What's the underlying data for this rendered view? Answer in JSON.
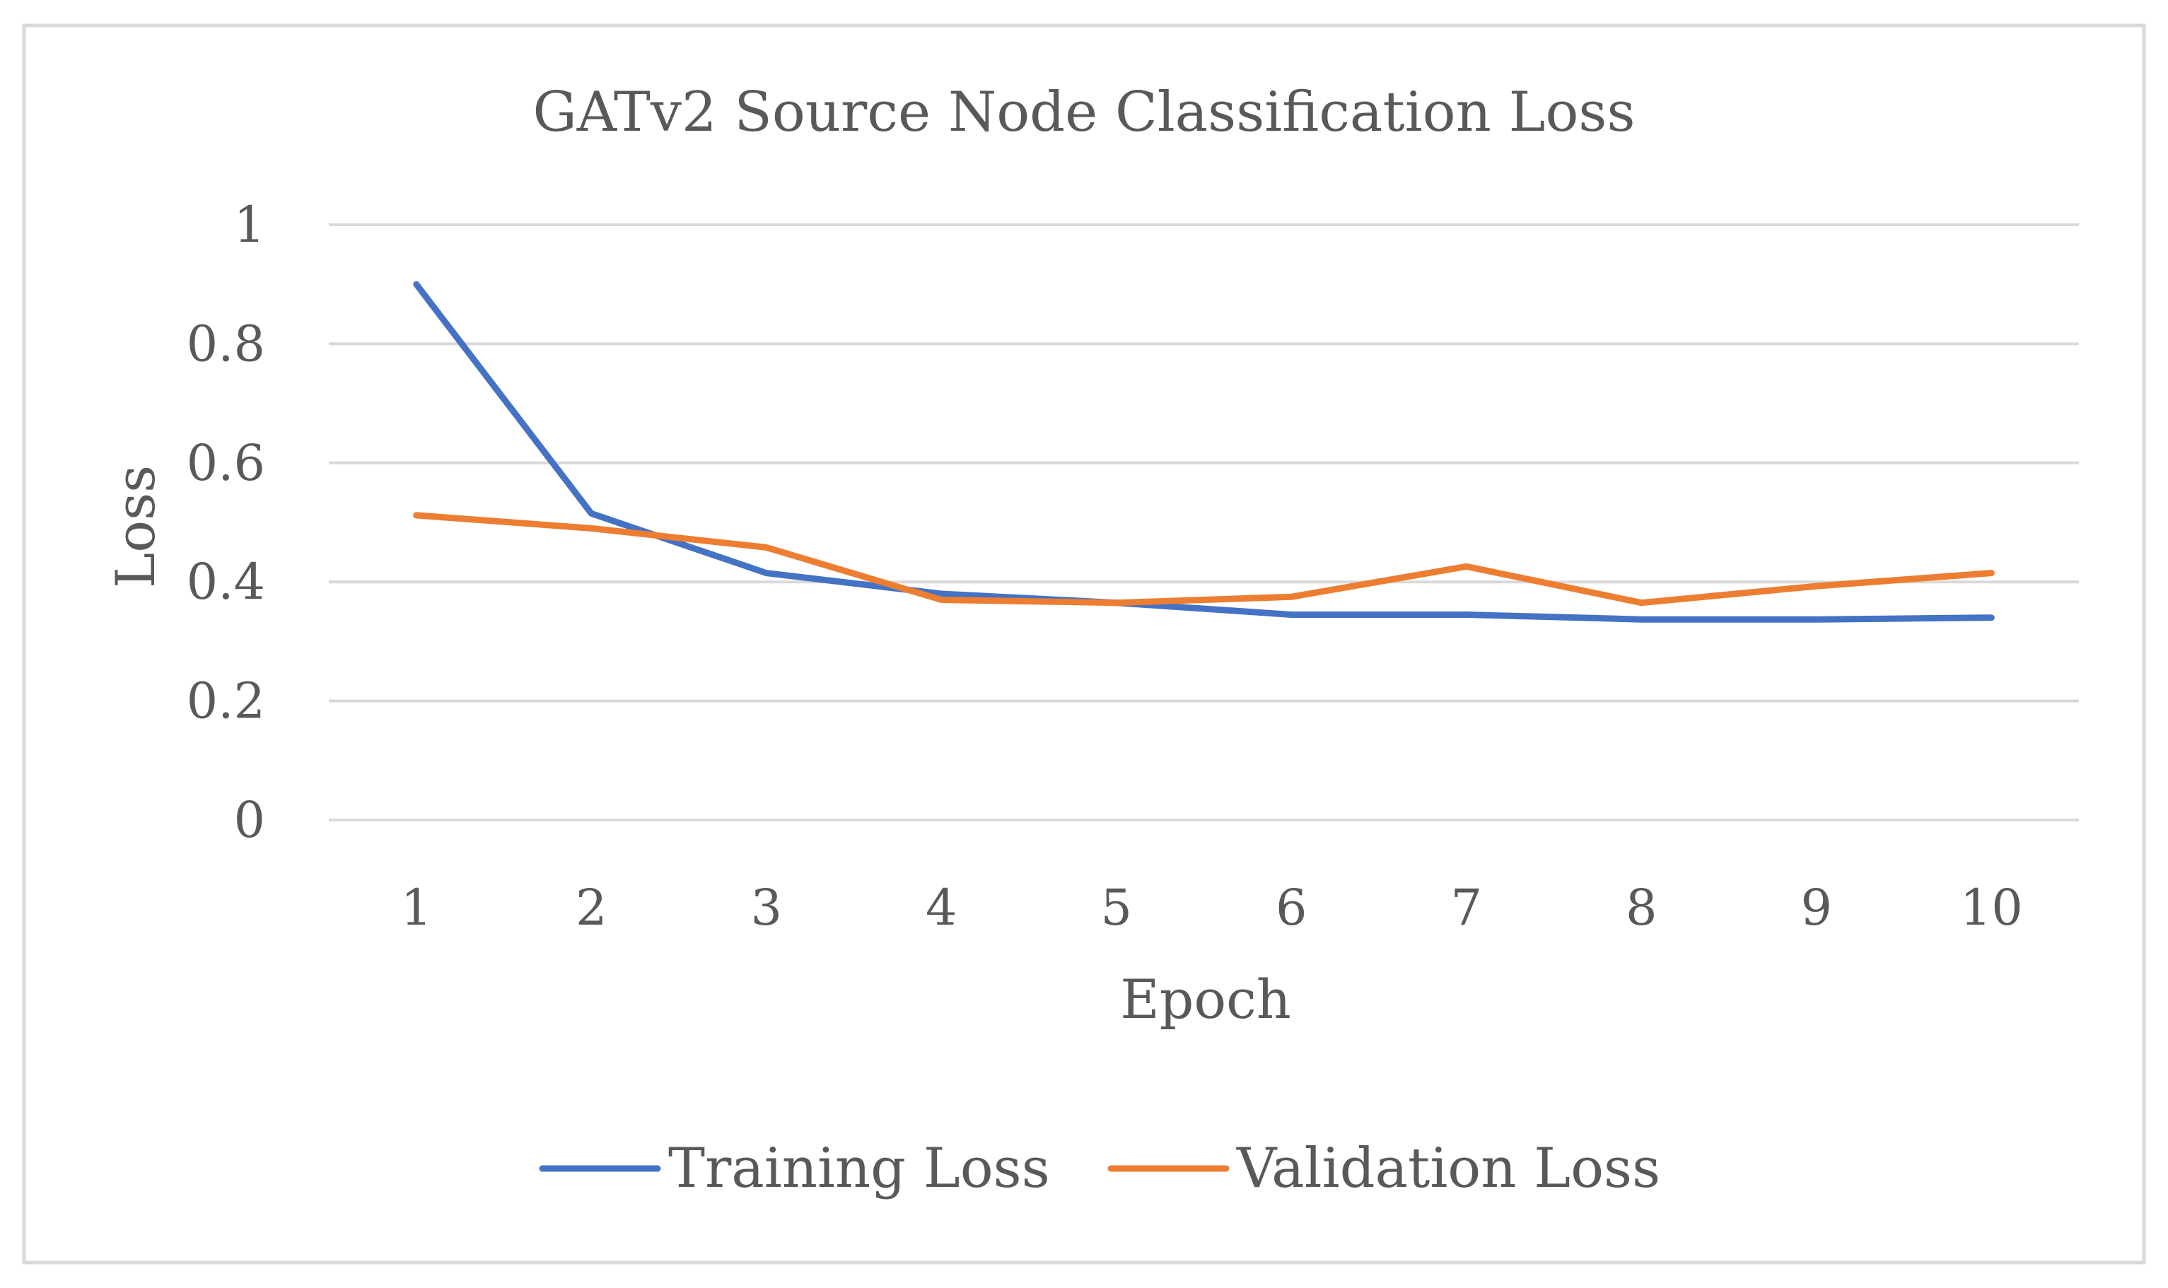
{
  "chart_data": {
    "type": "line",
    "title": "GATv2 Source Node Classification Loss",
    "xlabel": "Epoch",
    "ylabel": "Loss",
    "categories": [
      "1",
      "2",
      "3",
      "4",
      "5",
      "6",
      "7",
      "8",
      "9",
      "10"
    ],
    "ylim": [
      0,
      1
    ],
    "yticks": [
      "0",
      "0.2",
      "0.4",
      "0.6",
      "0.8",
      "1"
    ],
    "grid": true,
    "legend_position": "bottom",
    "series": [
      {
        "name": "Training Loss",
        "color": "#4472C4",
        "values": [
          0.9,
          0.515,
          0.415,
          0.38,
          0.365,
          0.345,
          0.345,
          0.337,
          0.337,
          0.34
        ]
      },
      {
        "name": "Validation Loss",
        "color": "#ED7D31",
        "values": [
          0.512,
          0.49,
          0.458,
          0.37,
          0.365,
          0.375,
          0.426,
          0.365,
          0.393,
          0.415
        ]
      }
    ]
  }
}
